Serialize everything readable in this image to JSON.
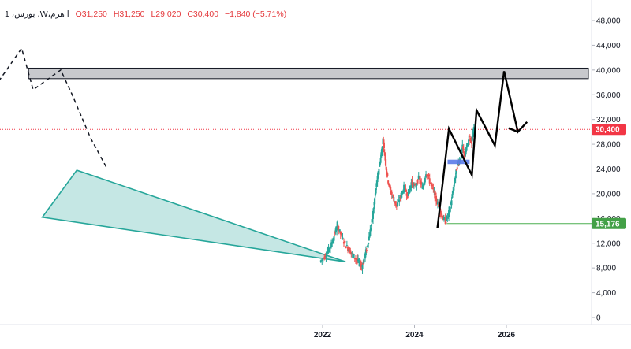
{
  "legend": {
    "symbol": "1 ،بورس ،W،ا هرم",
    "open": "O31,250",
    "high": "H31,250",
    "low": "L29,020",
    "close": "C30,400",
    "change": "−1,840 (−5.71%)"
  },
  "chart_data": {
    "type": "candlestick",
    "y_axis": {
      "ticks": [
        48000,
        44000,
        40000,
        36000,
        32000,
        28000,
        24000,
        20000,
        16000,
        12000,
        8000,
        4000,
        0
      ],
      "tick_labels": [
        "48,000",
        "44,000",
        "40,000",
        "36,000",
        "32,000",
        "28,000",
        "24,000",
        "20,000",
        "16,000",
        "12,000",
        "8,000",
        "4,000",
        "0"
      ],
      "range": [
        0,
        48000
      ],
      "position": "right"
    },
    "x_axis": {
      "tick_labels": [
        "2022",
        "2024",
        "2026"
      ],
      "ticks": [
        2022,
        2024,
        2026
      ]
    },
    "price_series": [
      [
        2021.95,
        9000
      ],
      [
        2022.05,
        9800
      ],
      [
        2022.12,
        10800
      ],
      [
        2022.2,
        11800
      ],
      [
        2022.28,
        13800
      ],
      [
        2022.33,
        14800
      ],
      [
        2022.4,
        13500
      ],
      [
        2022.5,
        11800
      ],
      [
        2022.58,
        11000
      ],
      [
        2022.65,
        10200
      ],
      [
        2022.73,
        9500
      ],
      [
        2022.8,
        8800
      ],
      [
        2022.86,
        8200
      ],
      [
        2022.92,
        9800
      ],
      [
        2022.98,
        11500
      ],
      [
        2023.03,
        13500
      ],
      [
        2023.08,
        15500
      ],
      [
        2023.13,
        18500
      ],
      [
        2023.18,
        21500
      ],
      [
        2023.22,
        23500
      ],
      [
        2023.27,
        25800
      ],
      [
        2023.32,
        28800
      ],
      [
        2023.37,
        25500
      ],
      [
        2023.42,
        22500
      ],
      [
        2023.48,
        20500
      ],
      [
        2023.55,
        19200
      ],
      [
        2023.62,
        18000
      ],
      [
        2023.7,
        19500
      ],
      [
        2023.78,
        21000
      ],
      [
        2023.86,
        19800
      ],
      [
        2023.94,
        21800
      ],
      [
        2024.02,
        21000
      ],
      [
        2024.1,
        22500
      ],
      [
        2024.18,
        20800
      ],
      [
        2024.26,
        23500
      ],
      [
        2024.34,
        22000
      ],
      [
        2024.42,
        20500
      ],
      [
        2024.48,
        19000
      ],
      [
        2024.55,
        17500
      ],
      [
        2024.62,
        16200
      ],
      [
        2024.68,
        15500
      ],
      [
        2024.74,
        16500
      ],
      [
        2024.8,
        18500
      ],
      [
        2024.86,
        21000
      ],
      [
        2024.9,
        23000
      ],
      [
        2024.95,
        25000
      ],
      [
        2025.0,
        25500
      ],
      [
        2025.05,
        27500
      ],
      [
        2025.1,
        26000
      ],
      [
        2025.15,
        27800
      ],
      [
        2025.2,
        29000
      ],
      [
        2025.25,
        28500
      ],
      [
        2025.3,
        30400
      ]
    ],
    "price_line": {
      "value": 30400,
      "label": "30,400",
      "color": "#f23645"
    },
    "level_line": {
      "value": 15176,
      "label": "15,176",
      "color": "#4caf50",
      "from_x": 2024.7
    },
    "resistance_zone": {
      "y_low": 38600,
      "y_high": 40300,
      "x_from": 2015.6,
      "x_to": 2028.0
    },
    "support_zone": {
      "y_low": 24800,
      "y_high": 25500,
      "x_from": 2024.72,
      "x_to": 2025.2
    },
    "triangle": [
      [
        2015.9,
        16200
      ],
      [
        2016.65,
        23800
      ],
      [
        2022.5,
        9000
      ]
    ],
    "dashed_path": [
      [
        2012.3,
        10000
      ],
      [
        2015.45,
        43500
      ],
      [
        2015.7,
        36800
      ],
      [
        2016.3,
        40000
      ],
      [
        2016.55,
        36000
      ],
      [
        2016.95,
        29000
      ],
      [
        2017.3,
        24200
      ]
    ],
    "projection_path": [
      [
        2024.5,
        14500
      ],
      [
        2024.75,
        30500
      ],
      [
        2025.25,
        23000
      ],
      [
        2025.35,
        33500
      ],
      [
        2025.75,
        27800
      ],
      [
        2025.95,
        39800
      ],
      [
        2026.25,
        30000
      ],
      [
        2026.45,
        31600
      ],
      [
        2026.05,
        30600
      ]
    ]
  },
  "colors": {
    "up": "#26a69a",
    "down": "#ef5350",
    "triangle_fill": "#b2dfdb",
    "triangle_stroke": "#26a69a",
    "zone_fill": "#c8c9cd",
    "zone_stroke": "#131722",
    "support_fill": "#5b7be8"
  }
}
